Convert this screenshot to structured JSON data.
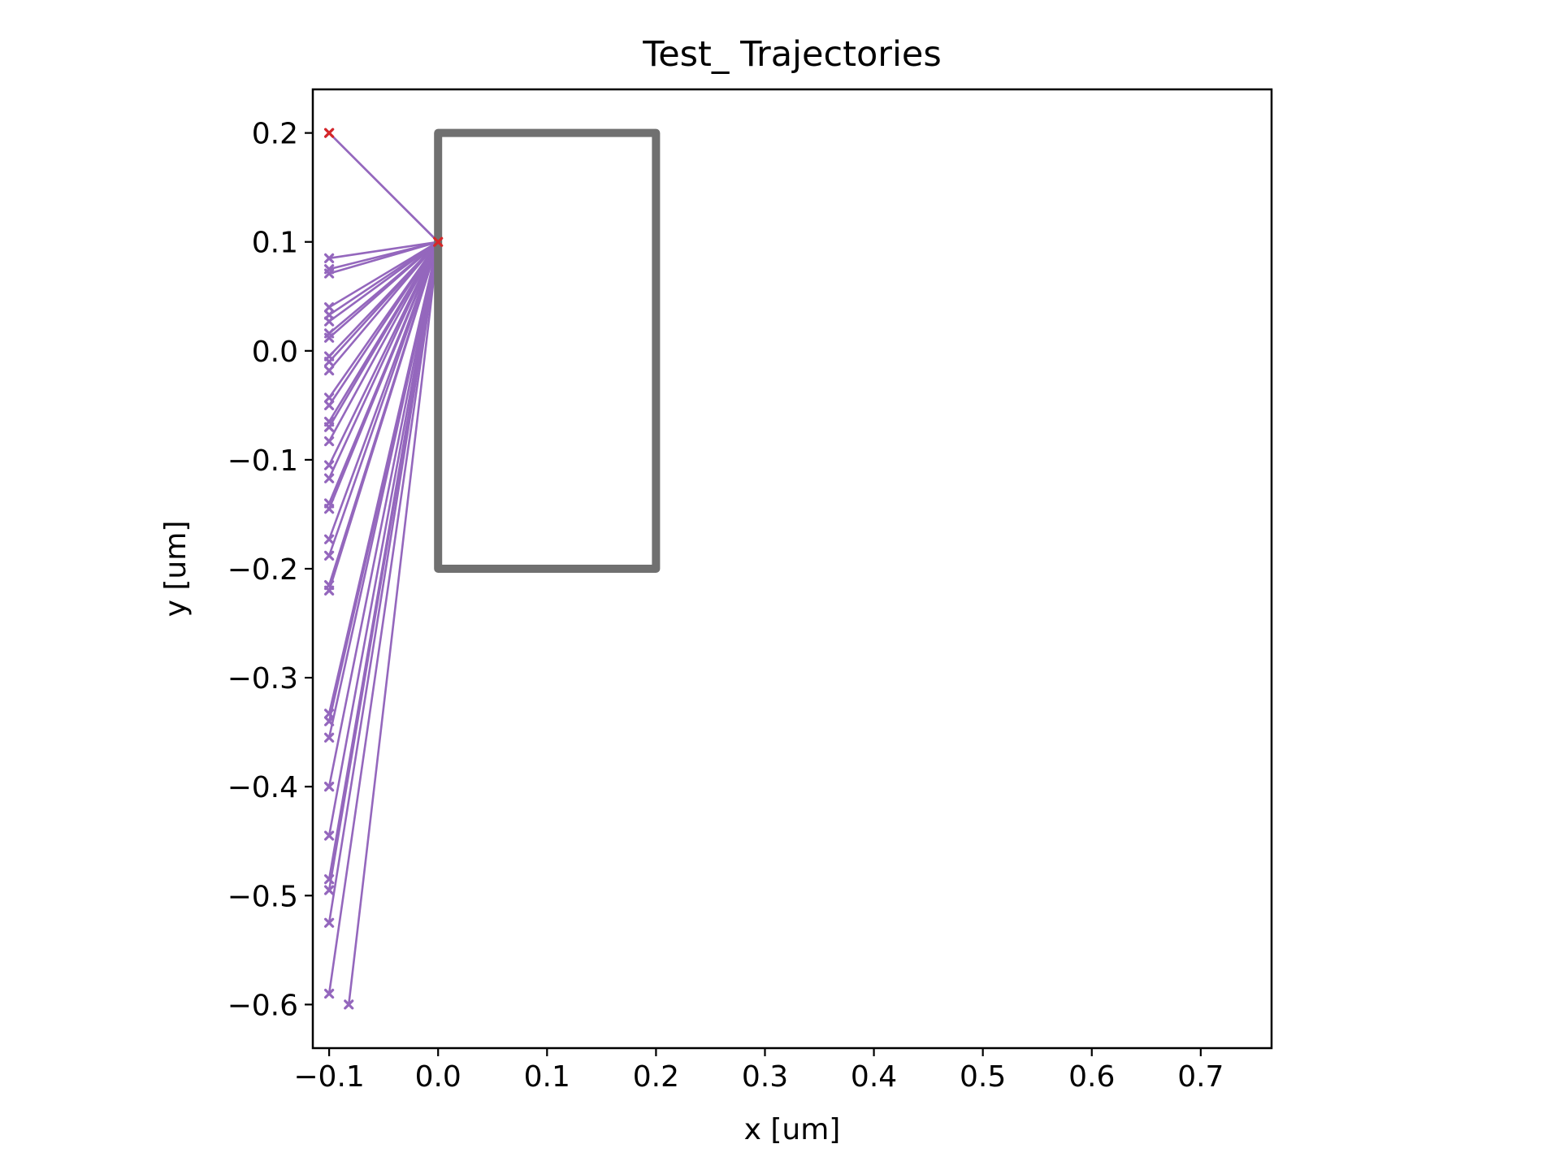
{
  "chart_data": {
    "type": "line",
    "title": "Test_ Trajectories",
    "xlabel": "x [um]",
    "ylabel": "y [um]",
    "xlim": [
      -0.115,
      0.765
    ],
    "ylim": [
      -0.64,
      0.24
    ],
    "x_ticks": [
      -0.1,
      0.0,
      0.1,
      0.2,
      0.3,
      0.4,
      0.5,
      0.6,
      0.7
    ],
    "x_tick_labels": [
      "−0.1",
      "0.0",
      "0.1",
      "0.2",
      "0.3",
      "0.4",
      "0.5",
      "0.6",
      "0.7"
    ],
    "y_ticks": [
      0.2,
      0.1,
      0.0,
      -0.1,
      -0.2,
      -0.3,
      -0.4,
      -0.5,
      -0.6
    ],
    "y_tick_labels": [
      "0.2",
      "0.1",
      "0.0",
      "−0.1",
      "−0.2",
      "−0.3",
      "−0.4",
      "−0.5",
      "−0.6"
    ],
    "grid": false,
    "legend": false,
    "trajectory_color": "#9467bd",
    "start_marker_color": "#d62728",
    "obstacle_color": "#707070",
    "obstacle": {
      "x": [
        0.0,
        0.2
      ],
      "y": [
        -0.2,
        0.2
      ]
    },
    "incoming_segment": {
      "from": [
        -0.1,
        0.2
      ],
      "to": [
        0.0,
        0.1
      ]
    },
    "trajectories": [
      {
        "start": [
          0.0,
          0.1
        ],
        "end": [
          -0.1,
          0.2
        ]
      },
      {
        "start": [
          0.0,
          0.1
        ],
        "end": [
          -0.1,
          0.085
        ]
      },
      {
        "start": [
          0.0,
          0.1
        ],
        "end": [
          -0.1,
          0.075
        ]
      },
      {
        "start": [
          0.0,
          0.1
        ],
        "end": [
          -0.1,
          0.071
        ]
      },
      {
        "start": [
          0.0,
          0.1
        ],
        "end": [
          -0.1,
          0.04
        ]
      },
      {
        "start": [
          0.0,
          0.1
        ],
        "end": [
          -0.1,
          0.033
        ]
      },
      {
        "start": [
          0.0,
          0.1
        ],
        "end": [
          -0.1,
          0.027
        ]
      },
      {
        "start": [
          0.0,
          0.1
        ],
        "end": [
          -0.1,
          0.016
        ]
      },
      {
        "start": [
          0.0,
          0.1
        ],
        "end": [
          -0.1,
          0.012
        ]
      },
      {
        "start": [
          0.0,
          0.1
        ],
        "end": [
          -0.1,
          -0.005
        ]
      },
      {
        "start": [
          0.0,
          0.1
        ],
        "end": [
          -0.1,
          -0.01
        ]
      },
      {
        "start": [
          0.0,
          0.1
        ],
        "end": [
          -0.1,
          -0.018
        ]
      },
      {
        "start": [
          0.0,
          0.1
        ],
        "end": [
          -0.1,
          -0.043
        ]
      },
      {
        "start": [
          0.0,
          0.1
        ],
        "end": [
          -0.1,
          -0.05
        ]
      },
      {
        "start": [
          0.0,
          0.1
        ],
        "end": [
          -0.1,
          -0.065
        ]
      },
      {
        "start": [
          0.0,
          0.1
        ],
        "end": [
          -0.1,
          -0.07
        ]
      },
      {
        "start": [
          0.0,
          0.1
        ],
        "end": [
          -0.1,
          -0.083
        ]
      },
      {
        "start": [
          0.0,
          0.1
        ],
        "end": [
          -0.1,
          -0.105
        ]
      },
      {
        "start": [
          0.0,
          0.1
        ],
        "end": [
          -0.1,
          -0.117
        ]
      },
      {
        "start": [
          0.0,
          0.1
        ],
        "end": [
          -0.1,
          -0.14
        ]
      },
      {
        "start": [
          0.0,
          0.1
        ],
        "end": [
          -0.1,
          -0.145
        ]
      },
      {
        "start": [
          0.0,
          0.1
        ],
        "end": [
          -0.1,
          -0.173
        ]
      },
      {
        "start": [
          0.0,
          0.1
        ],
        "end": [
          -0.1,
          -0.188
        ]
      },
      {
        "start": [
          0.0,
          0.1
        ],
        "end": [
          -0.1,
          -0.215
        ]
      },
      {
        "start": [
          0.0,
          0.1
        ],
        "end": [
          -0.1,
          -0.22
        ]
      },
      {
        "start": [
          0.0,
          0.1
        ],
        "end": [
          -0.1,
          -0.333
        ]
      },
      {
        "start": [
          0.0,
          0.1
        ],
        "end": [
          -0.1,
          -0.34
        ]
      },
      {
        "start": [
          0.0,
          0.1
        ],
        "end": [
          -0.1,
          -0.355
        ]
      },
      {
        "start": [
          0.0,
          0.1
        ],
        "end": [
          -0.1,
          -0.4
        ]
      },
      {
        "start": [
          0.0,
          0.1
        ],
        "end": [
          -0.1,
          -0.445
        ]
      },
      {
        "start": [
          0.0,
          0.1
        ],
        "end": [
          -0.1,
          -0.485
        ]
      },
      {
        "start": [
          0.0,
          0.1
        ],
        "end": [
          -0.1,
          -0.495
        ]
      },
      {
        "start": [
          0.0,
          0.1
        ],
        "end": [
          -0.1,
          -0.525
        ]
      },
      {
        "start": [
          0.0,
          0.1
        ],
        "end": [
          -0.1,
          -0.59
        ]
      },
      {
        "start": [
          0.0,
          0.1
        ],
        "end": [
          -0.082,
          -0.6
        ]
      }
    ]
  }
}
